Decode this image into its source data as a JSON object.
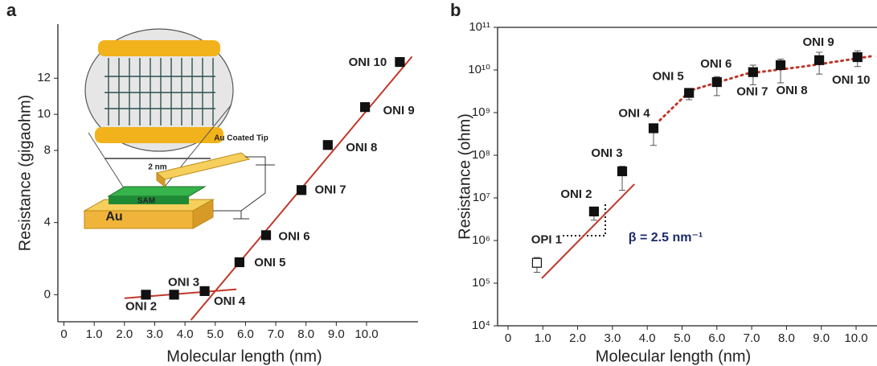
{
  "chart_data": [
    {
      "type": "scatter",
      "panel_label": "a",
      "xlabel": "Molecular length (nm)",
      "ylabel": "Resistance (gigaohm)",
      "xlim": [
        -0.2,
        11.7
      ],
      "ylim": [
        -1.5,
        15
      ],
      "xticks": [
        0,
        {
          "value": 1,
          "label": "1.0"
        },
        {
          "value": 2,
          "label": "2.0"
        },
        {
          "value": 3,
          "label": "3.0"
        },
        {
          "value": 4,
          "label": "4.0"
        },
        {
          "value": 5,
          "label": "5.0"
        },
        {
          "value": 6,
          "label": "6.0"
        },
        {
          "value": 7,
          "label": "7.0"
        },
        {
          "value": 8,
          "label": "8.0"
        },
        {
          "value": 9,
          "label": "9.0"
        },
        {
          "value": 10,
          "label": "10.0"
        }
      ],
      "yticks": [
        0,
        4,
        8,
        10,
        12
      ],
      "color": "#111111",
      "labels": [
        "ONI 2",
        "ONI 3",
        "ONI 4",
        "ONI 5",
        "ONI 6",
        "ONI 7",
        "ONI 8",
        "ONI 9",
        "ONI 10"
      ],
      "x": [
        2.71,
        3.64,
        4.65,
        5.8,
        6.68,
        7.85,
        8.72,
        9.95,
        11.1
      ],
      "values": [
        0,
        0,
        0.2,
        1.8,
        3.3,
        5.8,
        8.3,
        10.4,
        12.9
      ],
      "fit_lines": [
        {
          "color": "#c0392b",
          "style": "solid",
          "x": [
            2.0,
            5.7
          ],
          "values": [
            -0.2,
            0.3
          ]
        },
        {
          "color": "#c0392b",
          "style": "solid",
          "x": [
            4.2,
            11.5
          ],
          "values": [
            -1.4,
            13.2
          ]
        }
      ],
      "inset": {
        "tip_label": "Au Coated Tip",
        "scale_label": "2 nm",
        "sam_label": "SAM",
        "substrate_label": "Au"
      }
    },
    {
      "type": "scatter",
      "panel_label": "b",
      "xlabel": "Molecular length (nm)",
      "ylabel": "Resistance (ohm)",
      "xlim": [
        -0.3,
        10.6
      ],
      "ylim": [
        10000,
        100000000000
      ],
      "yscale": "log",
      "xticks": [
        0,
        {
          "value": 1,
          "label": "1.0"
        },
        {
          "value": 2,
          "label": "2.0"
        },
        {
          "value": 3,
          "label": "3.0"
        },
        {
          "value": 4,
          "label": "4.0"
        },
        {
          "value": 5,
          "label": "5.0"
        },
        {
          "value": 6,
          "label": "6.0"
        },
        {
          "value": 7,
          "label": "7.0"
        },
        {
          "value": 8,
          "label": "8.0"
        },
        {
          "value": 9,
          "label": "9.0"
        },
        {
          "value": 10,
          "label": "10.0"
        }
      ],
      "yticks": [
        {
          "value": 10000,
          "label": "10⁴"
        },
        {
          "value": 100000,
          "label": "10⁵"
        },
        {
          "value": 1000000,
          "label": "10⁶"
        },
        {
          "value": 10000000,
          "label": "10⁷"
        },
        {
          "value": 100000000,
          "label": "10⁸"
        },
        {
          "value": 1000000000,
          "label": "10⁹"
        },
        {
          "value": 10000000000,
          "label": "10¹⁰"
        },
        {
          "value": 100000000000,
          "label": "10¹¹"
        }
      ],
      "color": "#111111",
      "labels": [
        "OPI 1",
        "ONI 2",
        "ONI 3",
        "ONI 4",
        "ONI 5",
        "ONI 6",
        "ONI 7",
        "ONI 8",
        "ONI 9",
        "ONI 10"
      ],
      "markers": [
        "open",
        "filled",
        "filled",
        "filled",
        "filled",
        "filled",
        "filled",
        "filled",
        "filled",
        "filled"
      ],
      "x": [
        0.83,
        2.47,
        3.28,
        4.18,
        5.2,
        6.0,
        7.04,
        7.83,
        8.94,
        10.04
      ],
      "values": [
        300000,
        4800000,
        42000000,
        430000000,
        2900000000,
        5200000000,
        8900000000,
        13000000000,
        17000000000,
        20000000000
      ],
      "errors_low": [
        180000,
        3000000,
        15000000,
        170000000,
        2000000000,
        2500000000,
        4500000000,
        5000000000,
        8000000000,
        12000000000
      ],
      "errors_high": [
        400000,
        6000000,
        55000000,
        500000000,
        3500000000,
        7000000000,
        13000000000,
        18000000000,
        26000000000,
        28000000000
      ],
      "fit_lines": [
        {
          "color": "#c0392b",
          "style": "solid",
          "x": [
            0.97,
            3.63
          ],
          "values": [
            130000,
            21000000
          ]
        },
        {
          "color": "#c0392b",
          "style": "dotted",
          "x": [
            4.36,
            5.24,
            6.86,
            8.48,
            10.44
          ],
          "values": [
            660000000,
            3300000000,
            8200000000,
            12000000000,
            21000000000
          ]
        }
      ],
      "annotation": "β = 2.5 nm⁻¹"
    }
  ]
}
